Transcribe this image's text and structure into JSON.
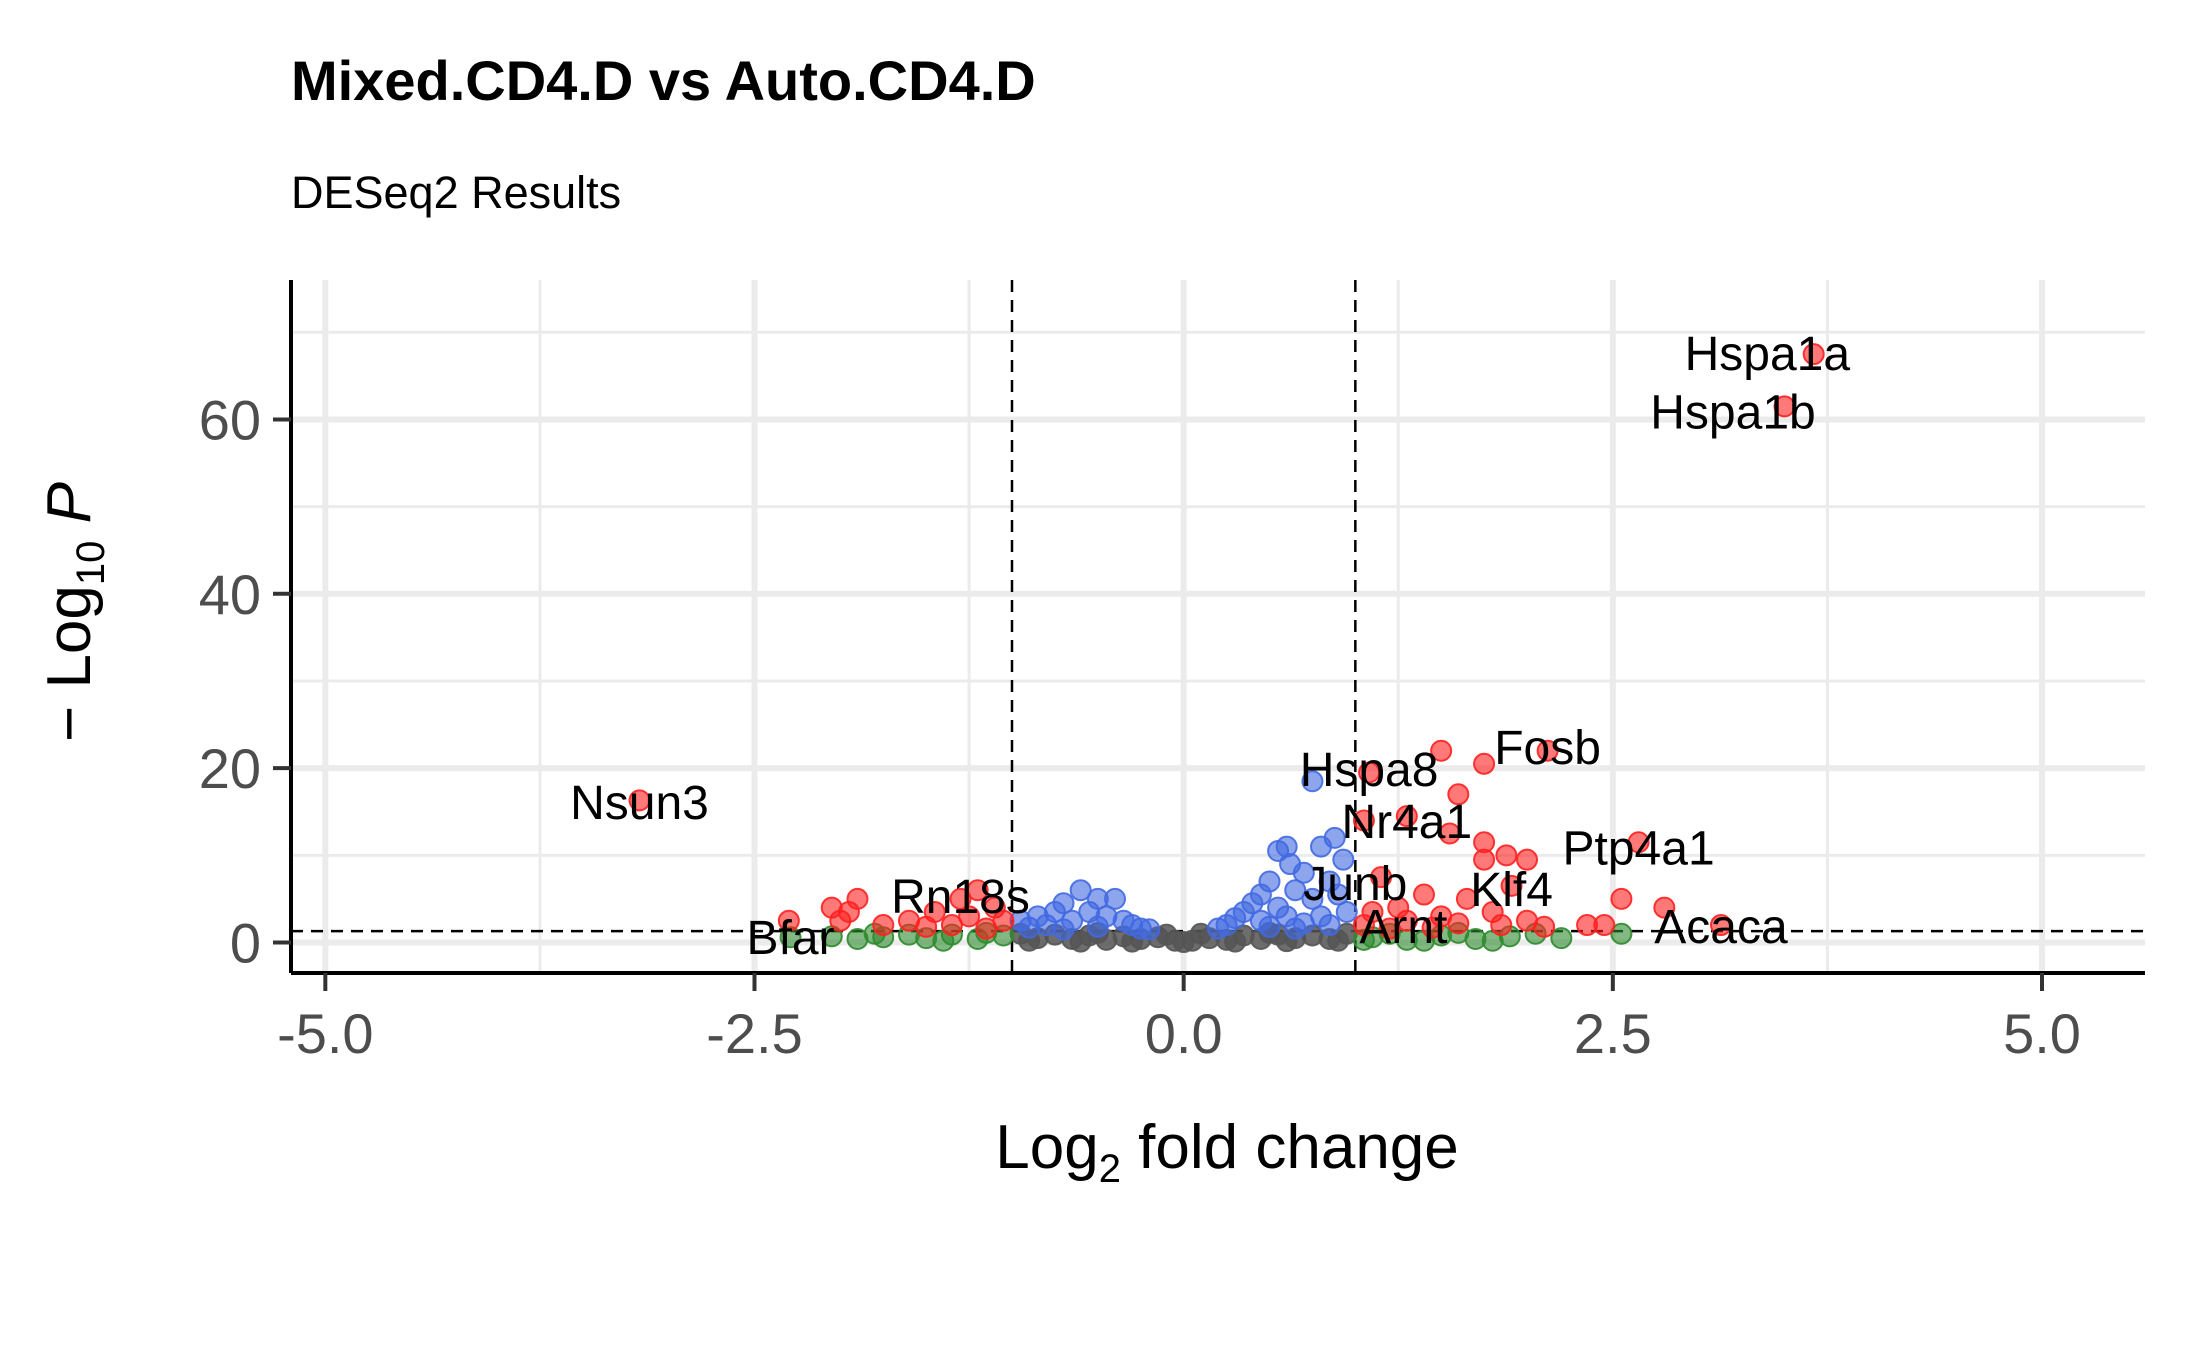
{
  "chart_data": {
    "type": "scatter",
    "title": "Mixed.CD4.D vs Auto.CD4.D",
    "subtitle": "DESeq2 Results",
    "xlabel": {
      "prefix": "Log",
      "sub": "2",
      "suffix": " fold change"
    },
    "ylabel": {
      "prefix": "− Log",
      "sub": "10",
      "suffix": " ",
      "italic": "P"
    },
    "xlim": [
      -5.2,
      5.6
    ],
    "ylim": [
      -3.5,
      76
    ],
    "x_ticks": [
      -5.0,
      -2.5,
      0.0,
      2.5,
      5.0
    ],
    "x_tick_labels": [
      "-5.0",
      "-2.5",
      "0.0",
      "2.5",
      "5.0"
    ],
    "y_ticks": [
      0,
      20,
      40,
      60
    ],
    "y_tick_labels": [
      "0",
      "20",
      "40",
      "60"
    ],
    "grid": true,
    "fc_cutoff": 1.0,
    "p_cutoff": 1.3,
    "colors": {
      "ns": "#555555",
      "log2fc": "#2e8b2e",
      "p": "#4169e1",
      "p_and_log2fc": "#ff2020"
    },
    "labeled_genes": [
      {
        "name": "Hspa1a",
        "x": 3.67,
        "y": 67.5,
        "lx": 3.4,
        "ly": 67.5
      },
      {
        "name": "Hspa1b",
        "x": 3.5,
        "y": 61.5,
        "lx": 3.2,
        "ly": 60.8
      },
      {
        "name": "Fosb",
        "x": 2.12,
        "y": 22.0,
        "lx": 2.12,
        "ly": 22.3
      },
      {
        "name": "Hspa8",
        "x": 1.08,
        "y": 20.0,
        "lx": 1.08,
        "ly": 19.8
      },
      {
        "name": "Nsun3",
        "x": -3.17,
        "y": 16.3,
        "lx": -3.17,
        "ly": 16.0
      },
      {
        "name": "Nr4a1",
        "x": 1.3,
        "y": 14.0,
        "lx": 1.3,
        "ly": 13.8
      },
      {
        "name": "Ptp4a1",
        "x": 2.65,
        "y": 11.5,
        "lx": 2.65,
        "ly": 10.8
      },
      {
        "name": "Junb",
        "x": 1.0,
        "y": 7.0,
        "lx": 1.0,
        "ly": 6.7
      },
      {
        "name": "Klf4",
        "x": 1.91,
        "y": 6.5,
        "lx": 1.91,
        "ly": 6.0
      },
      {
        "name": "Rn18s",
        "x": -1.3,
        "y": 5.0,
        "lx": -1.3,
        "ly": 5.2
      },
      {
        "name": "Arnt",
        "x": 1.28,
        "y": 1.6,
        "lx": 1.28,
        "ly": 1.8
      },
      {
        "name": "Acaca",
        "x": 3.13,
        "y": 1.8,
        "lx": 3.13,
        "ly": 1.8
      },
      {
        "name": "Bfar",
        "x": -2.29,
        "y": 0.6,
        "lx": -2.29,
        "ly": 0.5
      }
    ],
    "points": [
      {
        "x": 3.67,
        "y": 67.5,
        "g": "p_and_log2fc"
      },
      {
        "x": 3.5,
        "y": 61.5,
        "g": "p_and_log2fc"
      },
      {
        "x": 2.12,
        "y": 22.0,
        "g": "p_and_log2fc"
      },
      {
        "x": 1.5,
        "y": 22.0,
        "g": "p_and_log2fc"
      },
      {
        "x": 1.75,
        "y": 20.5,
        "g": "p_and_log2fc"
      },
      {
        "x": 1.6,
        "y": 17.0,
        "g": "p_and_log2fc"
      },
      {
        "x": 1.08,
        "y": 19.5,
        "g": "p_and_log2fc"
      },
      {
        "x": -3.17,
        "y": 16.3,
        "g": "p_and_log2fc"
      },
      {
        "x": 1.3,
        "y": 14.5,
        "g": "p_and_log2fc"
      },
      {
        "x": 1.05,
        "y": 14.0,
        "g": "p_and_log2fc"
      },
      {
        "x": 1.55,
        "y": 12.5,
        "g": "p_and_log2fc"
      },
      {
        "x": 1.75,
        "y": 11.5,
        "g": "p_and_log2fc"
      },
      {
        "x": 2.65,
        "y": 11.5,
        "g": "p_and_log2fc"
      },
      {
        "x": 1.88,
        "y": 10.0,
        "g": "p_and_log2fc"
      },
      {
        "x": 1.75,
        "y": 9.5,
        "g": "p_and_log2fc"
      },
      {
        "x": 2.0,
        "y": 9.5,
        "g": "p_and_log2fc"
      },
      {
        "x": 1.15,
        "y": 7.5,
        "g": "p_and_log2fc"
      },
      {
        "x": 1.91,
        "y": 6.5,
        "g": "p_and_log2fc"
      },
      {
        "x": 1.4,
        "y": 5.5,
        "g": "p_and_log2fc"
      },
      {
        "x": 1.65,
        "y": 5.0,
        "g": "p_and_log2fc"
      },
      {
        "x": 2.55,
        "y": 5.0,
        "g": "p_and_log2fc"
      },
      {
        "x": 2.8,
        "y": 4.0,
        "g": "p_and_log2fc"
      },
      {
        "x": 1.25,
        "y": 4.0,
        "g": "p_and_log2fc"
      },
      {
        "x": 1.1,
        "y": 3.5,
        "g": "p_and_log2fc"
      },
      {
        "x": 1.5,
        "y": 3.0,
        "g": "p_and_log2fc"
      },
      {
        "x": 1.8,
        "y": 3.5,
        "g": "p_and_log2fc"
      },
      {
        "x": 2.0,
        "y": 2.5,
        "g": "p_and_log2fc"
      },
      {
        "x": 1.3,
        "y": 2.5,
        "g": "p_and_log2fc"
      },
      {
        "x": 1.05,
        "y": 2.0,
        "g": "p_and_log2fc"
      },
      {
        "x": 1.6,
        "y": 2.2,
        "g": "p_and_log2fc"
      },
      {
        "x": 1.85,
        "y": 2.0,
        "g": "p_and_log2fc"
      },
      {
        "x": 2.1,
        "y": 1.8,
        "g": "p_and_log2fc"
      },
      {
        "x": 2.35,
        "y": 2.0,
        "g": "p_and_log2fc"
      },
      {
        "x": 2.45,
        "y": 2.0,
        "g": "p_and_log2fc"
      },
      {
        "x": 3.13,
        "y": 2.0,
        "g": "p_and_log2fc"
      },
      {
        "x": 1.2,
        "y": 1.6,
        "g": "p_and_log2fc"
      },
      {
        "x": 1.45,
        "y": 1.7,
        "g": "p_and_log2fc"
      },
      {
        "x": -1.05,
        "y": 2.5,
        "g": "p_and_log2fc"
      },
      {
        "x": -1.1,
        "y": 4.0,
        "g": "p_and_log2fc"
      },
      {
        "x": -1.2,
        "y": 6.0,
        "g": "p_and_log2fc"
      },
      {
        "x": -1.3,
        "y": 5.0,
        "g": "p_and_log2fc"
      },
      {
        "x": -1.45,
        "y": 3.5,
        "g": "p_and_log2fc"
      },
      {
        "x": -1.6,
        "y": 2.5,
        "g": "p_and_log2fc"
      },
      {
        "x": -1.35,
        "y": 2.0,
        "g": "p_and_log2fc"
      },
      {
        "x": -1.75,
        "y": 2.0,
        "g": "p_and_log2fc"
      },
      {
        "x": -1.5,
        "y": 1.8,
        "g": "p_and_log2fc"
      },
      {
        "x": -1.9,
        "y": 5.0,
        "g": "p_and_log2fc"
      },
      {
        "x": -1.95,
        "y": 3.5,
        "g": "p_and_log2fc"
      },
      {
        "x": -2.0,
        "y": 2.5,
        "g": "p_and_log2fc"
      },
      {
        "x": -2.05,
        "y": 4.0,
        "g": "p_and_log2fc"
      },
      {
        "x": -2.3,
        "y": 2.5,
        "g": "p_and_log2fc"
      },
      {
        "x": -1.15,
        "y": 1.6,
        "g": "p_and_log2fc"
      },
      {
        "x": -1.25,
        "y": 3.0,
        "g": "p_and_log2fc"
      },
      {
        "x": 0.75,
        "y": 18.5,
        "g": "p"
      },
      {
        "x": 0.88,
        "y": 12.0,
        "g": "p"
      },
      {
        "x": 0.93,
        "y": 9.5,
        "g": "p"
      },
      {
        "x": 0.6,
        "y": 11.0,
        "g": "p"
      },
      {
        "x": 0.62,
        "y": 9.0,
        "g": "p"
      },
      {
        "x": 0.8,
        "y": 11.0,
        "g": "p"
      },
      {
        "x": 0.55,
        "y": 10.5,
        "g": "p"
      },
      {
        "x": 0.7,
        "y": 8.0,
        "g": "p"
      },
      {
        "x": 0.85,
        "y": 7.0,
        "g": "p"
      },
      {
        "x": 0.5,
        "y": 7.0,
        "g": "p"
      },
      {
        "x": 0.65,
        "y": 6.0,
        "g": "p"
      },
      {
        "x": 0.45,
        "y": 5.5,
        "g": "p"
      },
      {
        "x": 0.75,
        "y": 5.0,
        "g": "p"
      },
      {
        "x": 0.9,
        "y": 5.5,
        "g": "p"
      },
      {
        "x": 0.4,
        "y": 4.5,
        "g": "p"
      },
      {
        "x": 0.55,
        "y": 4.0,
        "g": "p"
      },
      {
        "x": 0.35,
        "y": 3.5,
        "g": "p"
      },
      {
        "x": 0.6,
        "y": 3.0,
        "g": "p"
      },
      {
        "x": 0.8,
        "y": 3.0,
        "g": "p"
      },
      {
        "x": 0.95,
        "y": 3.5,
        "g": "p"
      },
      {
        "x": 0.3,
        "y": 2.8,
        "g": "p"
      },
      {
        "x": 0.45,
        "y": 2.5,
        "g": "p"
      },
      {
        "x": 0.7,
        "y": 2.2,
        "g": "p"
      },
      {
        "x": 0.25,
        "y": 2.0,
        "g": "p"
      },
      {
        "x": 0.5,
        "y": 1.8,
        "g": "p"
      },
      {
        "x": 0.85,
        "y": 2.0,
        "g": "p"
      },
      {
        "x": 0.2,
        "y": 1.6,
        "g": "p"
      },
      {
        "x": 0.65,
        "y": 1.6,
        "g": "p"
      },
      {
        "x": -0.6,
        "y": 6.0,
        "g": "p"
      },
      {
        "x": -0.5,
        "y": 5.0,
        "g": "p"
      },
      {
        "x": -0.4,
        "y": 5.0,
        "g": "p"
      },
      {
        "x": -0.7,
        "y": 4.5,
        "g": "p"
      },
      {
        "x": -0.75,
        "y": 3.5,
        "g": "p"
      },
      {
        "x": -0.55,
        "y": 3.5,
        "g": "p"
      },
      {
        "x": -0.85,
        "y": 3.0,
        "g": "p"
      },
      {
        "x": -0.95,
        "y": 2.5,
        "g": "p"
      },
      {
        "x": -0.45,
        "y": 3.0,
        "g": "p"
      },
      {
        "x": -0.35,
        "y": 2.5,
        "g": "p"
      },
      {
        "x": -0.65,
        "y": 2.5,
        "g": "p"
      },
      {
        "x": -0.3,
        "y": 2.0,
        "g": "p"
      },
      {
        "x": -0.8,
        "y": 2.0,
        "g": "p"
      },
      {
        "x": -0.5,
        "y": 1.8,
        "g": "p"
      },
      {
        "x": -0.25,
        "y": 1.6,
        "g": "p"
      },
      {
        "x": -0.9,
        "y": 1.7,
        "g": "p"
      },
      {
        "x": -0.2,
        "y": 1.5,
        "g": "p"
      },
      {
        "x": -0.7,
        "y": 1.5,
        "g": "p"
      },
      {
        "x": 2.55,
        "y": 1.0,
        "g": "log2fc"
      },
      {
        "x": 2.2,
        "y": 0.5,
        "g": "log2fc"
      },
      {
        "x": 1.9,
        "y": 0.7,
        "g": "log2fc"
      },
      {
        "x": 1.7,
        "y": 0.4,
        "g": "log2fc"
      },
      {
        "x": 1.5,
        "y": 0.8,
        "g": "log2fc"
      },
      {
        "x": 1.3,
        "y": 0.3,
        "g": "log2fc"
      },
      {
        "x": 1.1,
        "y": 0.6,
        "g": "log2fc"
      },
      {
        "x": 1.2,
        "y": 1.0,
        "g": "log2fc"
      },
      {
        "x": 1.6,
        "y": 1.1,
        "g": "log2fc"
      },
      {
        "x": 2.05,
        "y": 1.0,
        "g": "log2fc"
      },
      {
        "x": 1.4,
        "y": 0.2,
        "g": "log2fc"
      },
      {
        "x": 1.8,
        "y": 0.2,
        "g": "log2fc"
      },
      {
        "x": 1.05,
        "y": 0.3,
        "g": "log2fc"
      },
      {
        "x": -1.05,
        "y": 0.8,
        "g": "log2fc"
      },
      {
        "x": -1.2,
        "y": 0.4,
        "g": "log2fc"
      },
      {
        "x": -1.35,
        "y": 0.9,
        "g": "log2fc"
      },
      {
        "x": -1.5,
        "y": 0.5,
        "g": "log2fc"
      },
      {
        "x": -1.6,
        "y": 0.9,
        "g": "log2fc"
      },
      {
        "x": -1.75,
        "y": 0.6,
        "g": "log2fc"
      },
      {
        "x": -1.9,
        "y": 0.4,
        "g": "log2fc"
      },
      {
        "x": -2.05,
        "y": 0.7,
        "g": "log2fc"
      },
      {
        "x": -2.29,
        "y": 0.6,
        "g": "log2fc"
      },
      {
        "x": -1.15,
        "y": 1.1,
        "g": "log2fc"
      },
      {
        "x": -1.4,
        "y": 0.2,
        "g": "log2fc"
      },
      {
        "x": -1.8,
        "y": 1.0,
        "g": "log2fc"
      },
      {
        "x": -0.95,
        "y": 1.0,
        "g": "ns"
      },
      {
        "x": -0.85,
        "y": 0.5,
        "g": "ns"
      },
      {
        "x": -0.75,
        "y": 0.9,
        "g": "ns"
      },
      {
        "x": -0.65,
        "y": 0.4,
        "g": "ns"
      },
      {
        "x": -0.55,
        "y": 0.8,
        "g": "ns"
      },
      {
        "x": -0.45,
        "y": 0.3,
        "g": "ns"
      },
      {
        "x": -0.35,
        "y": 0.7,
        "g": "ns"
      },
      {
        "x": -0.25,
        "y": 0.4,
        "g": "ns"
      },
      {
        "x": -0.15,
        "y": 0.6,
        "g": "ns"
      },
      {
        "x": -0.05,
        "y": 0.2,
        "g": "ns"
      },
      {
        "x": 0.05,
        "y": 0.2,
        "g": "ns"
      },
      {
        "x": 0.15,
        "y": 0.5,
        "g": "ns"
      },
      {
        "x": 0.25,
        "y": 0.3,
        "g": "ns"
      },
      {
        "x": 0.35,
        "y": 0.8,
        "g": "ns"
      },
      {
        "x": 0.45,
        "y": 0.4,
        "g": "ns"
      },
      {
        "x": 0.55,
        "y": 0.9,
        "g": "ns"
      },
      {
        "x": 0.65,
        "y": 0.5,
        "g": "ns"
      },
      {
        "x": 0.75,
        "y": 0.8,
        "g": "ns"
      },
      {
        "x": 0.85,
        "y": 0.4,
        "g": "ns"
      },
      {
        "x": 0.95,
        "y": 1.0,
        "g": "ns"
      },
      {
        "x": -0.9,
        "y": 0.2,
        "g": "ns"
      },
      {
        "x": -0.6,
        "y": 0.1,
        "g": "ns"
      },
      {
        "x": -0.3,
        "y": 0.1,
        "g": "ns"
      },
      {
        "x": 0.0,
        "y": 0.05,
        "g": "ns"
      },
      {
        "x": 0.3,
        "y": 0.1,
        "g": "ns"
      },
      {
        "x": 0.6,
        "y": 0.15,
        "g": "ns"
      },
      {
        "x": 0.9,
        "y": 0.2,
        "g": "ns"
      },
      {
        "x": -0.1,
        "y": 0.9,
        "g": "ns"
      },
      {
        "x": 0.1,
        "y": 1.0,
        "g": "ns"
      },
      {
        "x": -0.5,
        "y": 1.1,
        "g": "ns"
      },
      {
        "x": 0.5,
        "y": 1.1,
        "g": "ns"
      }
    ]
  }
}
